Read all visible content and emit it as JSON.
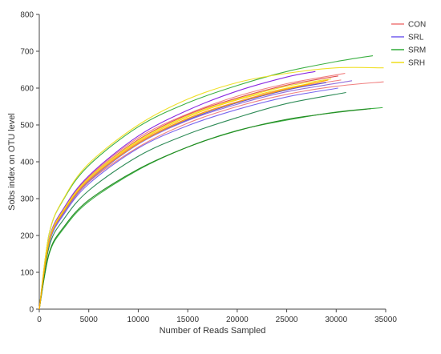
{
  "chart_data": {
    "type": "line",
    "title": "",
    "xlabel": "Number of Reads Sampled",
    "ylabel": "Sobs index on OTU level",
    "xlim": [
      0,
      35000
    ],
    "ylim": [
      0,
      800
    ],
    "xticks": [
      0,
      5000,
      10000,
      15000,
      20000,
      25000,
      30000,
      35000
    ],
    "yticks": [
      0,
      100,
      200,
      300,
      400,
      500,
      600,
      700,
      800
    ],
    "grid": false,
    "legend_position": "top-right",
    "legend": [
      {
        "label": "CON",
        "color": "#f08080"
      },
      {
        "label": "SRL",
        "color": "#7b68ee"
      },
      {
        "label": "SRM",
        "color": "#3cb043"
      },
      {
        "label": "SRH",
        "color": "#f0e02a"
      }
    ],
    "series": [
      {
        "group": "CON",
        "color": "#f08080",
        "x": [
          0,
          1000,
          2500,
          5000,
          10000,
          15000,
          20000,
          25000,
          30000,
          34800
        ],
        "y": [
          0,
          180,
          260,
          345,
          440,
          505,
          550,
          583,
          605,
          617
        ]
      },
      {
        "group": "CON",
        "color": "#f08080",
        "x": [
          0,
          1000,
          2500,
          5000,
          10000,
          15000,
          20000,
          25000,
          30900
        ],
        "y": [
          0,
          190,
          275,
          360,
          465,
          530,
          578,
          612,
          640
        ]
      },
      {
        "group": "CON",
        "color": "#f08080",
        "x": [
          0,
          1000,
          2500,
          5000,
          10000,
          15000,
          20000,
          25000,
          30500
        ],
        "y": [
          0,
          185,
          268,
          352,
          452,
          518,
          563,
          598,
          622
        ]
      },
      {
        "group": "CON",
        "color": "#e05050",
        "x": [
          0,
          1000,
          2500,
          5000,
          10000,
          15000,
          20000,
          25000,
          30200
        ],
        "y": [
          0,
          188,
          273,
          357,
          460,
          528,
          573,
          608,
          633
        ]
      },
      {
        "group": "SRL",
        "color": "#7b68ee",
        "x": [
          0,
          1000,
          2500,
          5000,
          10000,
          15000,
          20000,
          25000,
          30200
        ],
        "y": [
          0,
          178,
          258,
          340,
          437,
          498,
          542,
          576,
          600
        ]
      },
      {
        "group": "SRL",
        "color": "#5a4fcf",
        "x": [
          0,
          1000,
          2500,
          5000,
          10000,
          15000,
          20000,
          25000,
          29000
        ],
        "y": [
          0,
          182,
          263,
          347,
          448,
          514,
          560,
          595,
          615
        ]
      },
      {
        "group": "SRL",
        "color": "#9370db",
        "x": [
          0,
          1000,
          2500,
          5000,
          10000,
          15000,
          20000,
          25000,
          31600
        ],
        "y": [
          0,
          182,
          264,
          348,
          448,
          512,
          556,
          590,
          620
        ]
      },
      {
        "group": "SRL",
        "color": "#8a2be2",
        "x": [
          0,
          1000,
          2500,
          5000,
          10000,
          15000,
          20000,
          25000,
          27900
        ],
        "y": [
          0,
          190,
          275,
          362,
          470,
          540,
          592,
          630,
          645
        ]
      },
      {
        "group": "SRM",
        "color": "#3cb043",
        "x": [
          0,
          1000,
          2500,
          5000,
          10000,
          15000,
          20000,
          25000,
          30000,
          33700
        ],
        "y": [
          0,
          205,
          300,
          390,
          495,
          560,
          607,
          645,
          672,
          688
        ]
      },
      {
        "group": "SRM",
        "color": "#2e8b57",
        "x": [
          0,
          1000,
          2500,
          5000,
          10000,
          15000,
          20000,
          25000,
          31000
        ],
        "y": [
          0,
          170,
          245,
          322,
          415,
          475,
          520,
          558,
          588
        ]
      },
      {
        "group": "SRM",
        "color": "#3cb043",
        "x": [
          0,
          1000,
          2500,
          5000,
          10000,
          15000,
          20000,
          25000,
          30000,
          34700
        ],
        "y": [
          0,
          150,
          220,
          292,
          378,
          440,
          485,
          513,
          535,
          547
        ]
      },
      {
        "group": "SRM",
        "color": "#228b22",
        "x": [
          0,
          1000,
          2500,
          5000,
          10000,
          15000,
          20000,
          25000,
          30000,
          33500
        ],
        "y": [
          0,
          153,
          224,
          296,
          380,
          440,
          484,
          515,
          534,
          544
        ]
      },
      {
        "group": "SRH",
        "color": "#f0e02a",
        "x": [
          0,
          1000,
          2500,
          5000,
          10000,
          15000,
          20000,
          25000,
          30000,
          34800
        ],
        "y": [
          0,
          205,
          302,
          395,
          500,
          570,
          615,
          640,
          655,
          655
        ]
      },
      {
        "group": "SRH",
        "color": "#ffd700",
        "x": [
          0,
          1000,
          2500,
          5000,
          10000,
          15000,
          20000,
          25000,
          28900
        ],
        "y": [
          0,
          186,
          270,
          355,
          455,
          522,
          568,
          600,
          620
        ]
      },
      {
        "group": "SRH",
        "color": "#f0e02a",
        "x": [
          0,
          1000,
          2500,
          5000,
          10000,
          15000,
          20000,
          25000,
          29500
        ],
        "y": [
          0,
          187,
          271,
          356,
          458,
          525,
          570,
          605,
          625
        ]
      },
      {
        "group": "SRH",
        "color": "#ffa500",
        "x": [
          0,
          1000,
          2500,
          5000,
          10000,
          15000,
          20000,
          25000,
          29200
        ],
        "y": [
          0,
          183,
          266,
          350,
          450,
          517,
          562,
          597,
          622
        ]
      }
    ]
  }
}
